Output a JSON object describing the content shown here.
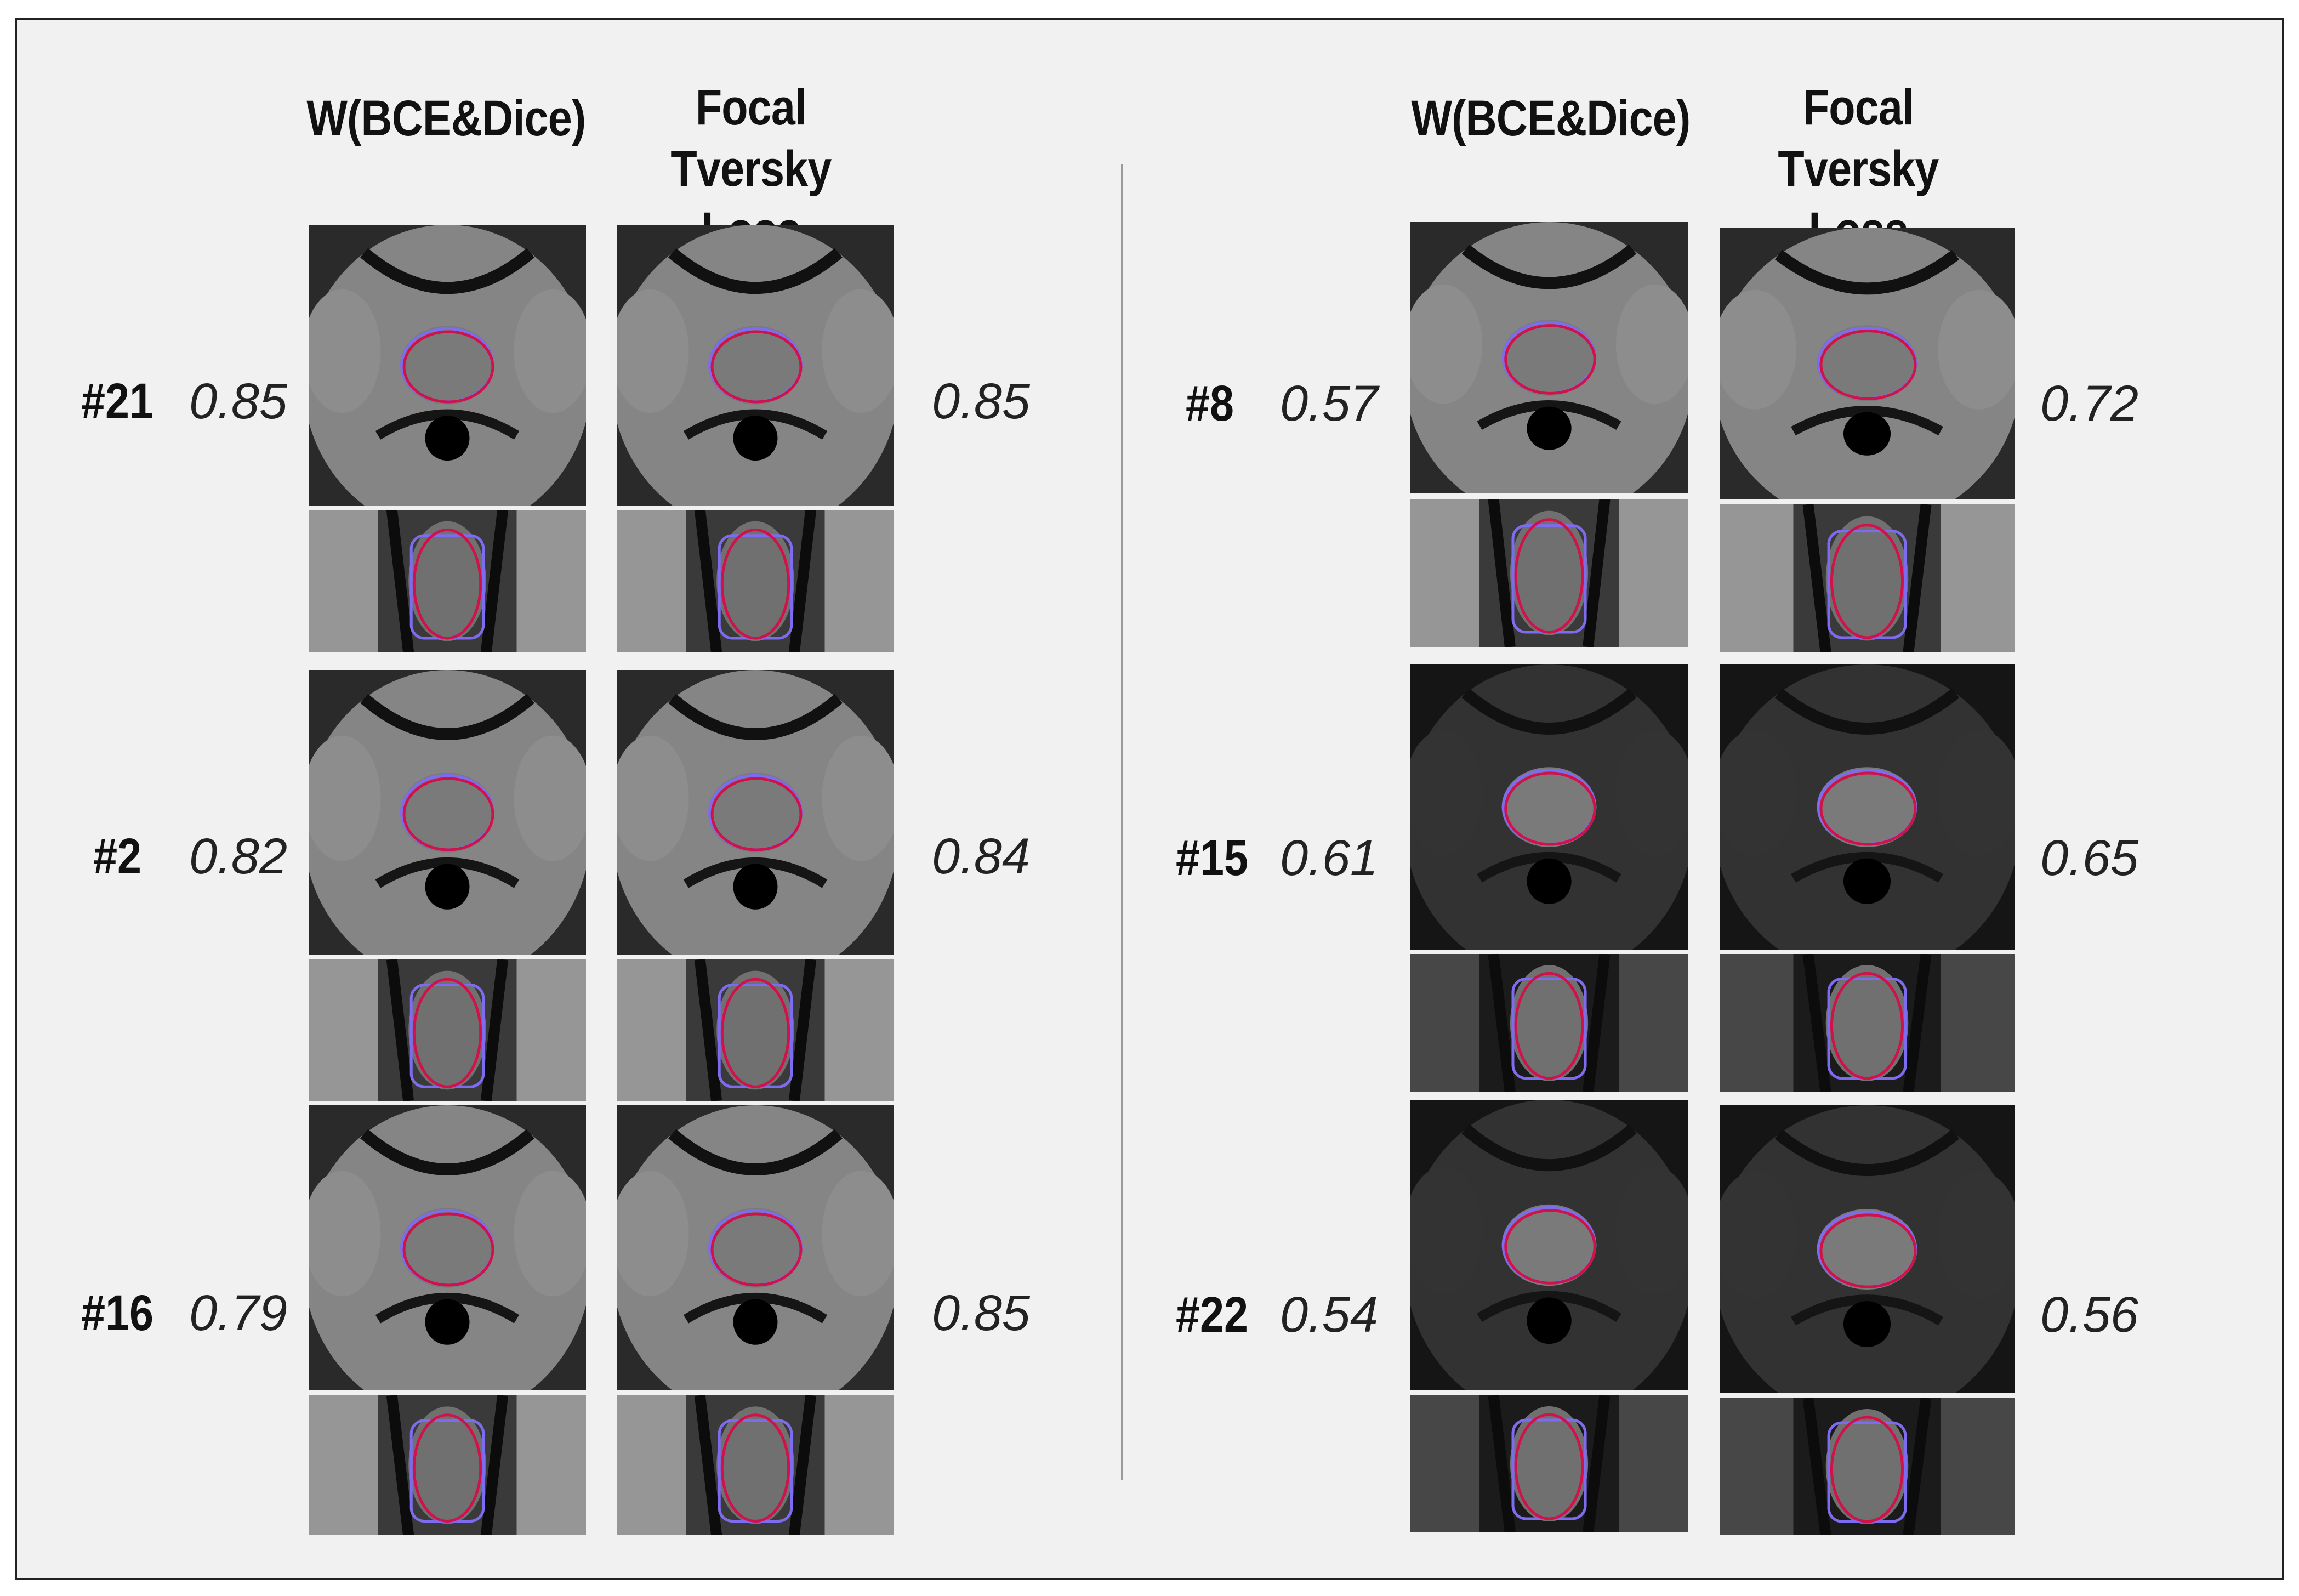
{
  "columns": {
    "left": {
      "method_a": "W(BCE&Dice)",
      "method_b": [
        "Focal Tversky",
        "Loss"
      ]
    },
    "right": {
      "method_a": "W(BCE&Dice)",
      "method_b": [
        "Focal Tversky",
        "Loss"
      ]
    }
  },
  "cases": [
    {
      "id": "#21",
      "score_a": "0.85",
      "score_b": "0.85"
    },
    {
      "id": "#2",
      "score_a": "0.82",
      "score_b": "0.84"
    },
    {
      "id": "#16",
      "score_a": "0.79",
      "score_b": "0.85"
    },
    {
      "id": "#8",
      "score_a": "0.57",
      "score_b": "0.72"
    },
    {
      "id": "#15",
      "score_a": "0.61",
      "score_b": "0.65"
    },
    {
      "id": "#22",
      "score_a": "0.54",
      "score_b": "0.56"
    }
  ],
  "colors": {
    "prediction_contour": "#7d6cf0",
    "ground_truth_contour": "#d0124a",
    "background": "#f1f1f1"
  }
}
